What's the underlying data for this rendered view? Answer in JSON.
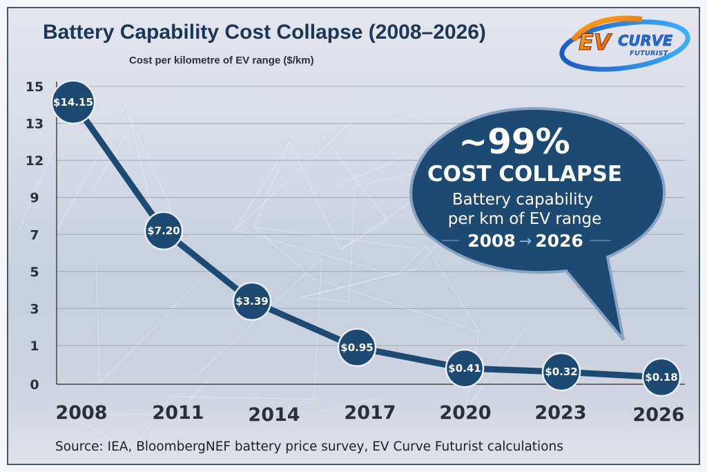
{
  "chart_data": {
    "type": "line",
    "title": "Battery Capability Cost Collapse (2008–2026)",
    "subtitle": "Cost per kilometre of EV range ($/km)",
    "x": [
      "2008",
      "2011",
      "2014",
      "2017",
      "2020",
      "2023",
      "2026"
    ],
    "values": [
      14.15,
      7.2,
      3.39,
      0.95,
      0.41,
      0.32,
      0.18
    ],
    "data_labels": [
      "$14.15",
      "$7.20",
      "$3.39",
      "$0.95",
      "$0.41",
      "$0.32",
      "$0.18"
    ],
    "y_ticks": [
      15,
      13,
      12,
      9,
      7,
      5,
      3,
      1,
      0
    ],
    "ylim": [
      0,
      15
    ],
    "grid": true,
    "legend": "none",
    "colors": {
      "line": "#1d4a72",
      "marker": "#1d4a72",
      "title": "#1e3656"
    },
    "annotation": {
      "headline": "~99%",
      "subhead": "COST COLLAPSE",
      "line1": "Battery capability",
      "line2": "per km of EV range",
      "range_start": "2008",
      "range_end": "2026"
    },
    "source": "Source: IEA, BloombergNEF battery price survey, EV Curve Futurist calculations"
  },
  "logo": {
    "text_ev": "EV",
    "text_curve": "CURVE",
    "text_futurist": "FUTURIST"
  }
}
